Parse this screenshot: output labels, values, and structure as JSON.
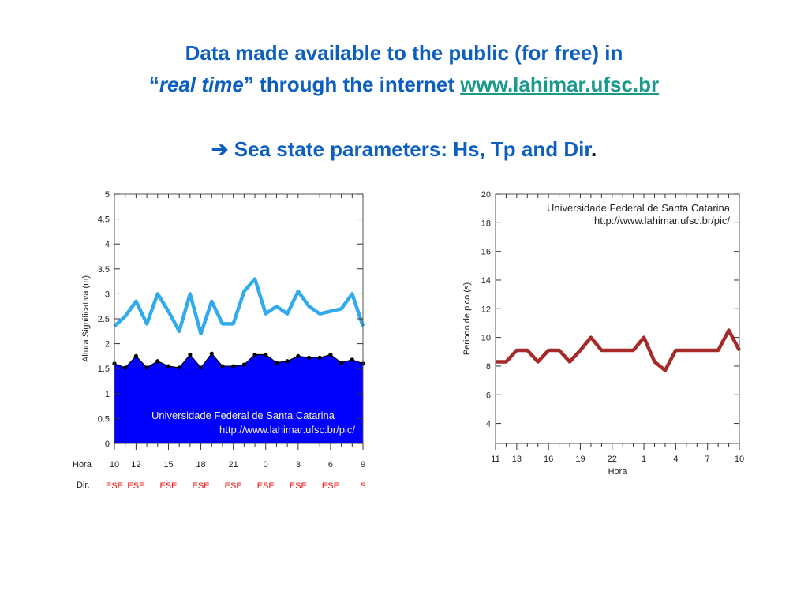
{
  "slide": {
    "title_line1": "Data made available to the public (for free) in",
    "quote_open": "“",
    "title_italic": "real time",
    "title_line2_rest": "” through the internet ",
    "link": "www.lahimar.ufsc.br",
    "subtitle": "➔ Sea state parameters: Hs, Tp and Dir",
    "subtitle_end": "."
  },
  "chart_data": [
    {
      "type": "line",
      "y_label": "Altura Significativa (m)",
      "x_label": "Hora",
      "dir_label": "Dir.",
      "annotation_line1": "Universidade Federal de Santa Catarina",
      "annotation_line2": "http://www.lahimar.ufsc.br/pic/",
      "annotation_color": "#f0f0c8",
      "categories": [
        "10",
        null,
        "12",
        null,
        null,
        "15",
        null,
        null,
        "18",
        null,
        null,
        "21",
        null,
        null,
        "0",
        null,
        null,
        "3",
        null,
        null,
        "6",
        null,
        null,
        "9"
      ],
      "directions": [
        "ESE",
        null,
        "ESE",
        null,
        null,
        "ESE",
        null,
        null,
        "ESE",
        null,
        null,
        "ESE",
        null,
        null,
        "ESE",
        null,
        null,
        "ESE",
        null,
        null,
        "ESE",
        null,
        null,
        "S"
      ],
      "direction_color": "#ee1111",
      "series": [
        {
          "color": "#0000ff",
          "fill": true,
          "marker_color": "#000000",
          "values": [
            1.6,
            1.52,
            1.75,
            1.52,
            1.65,
            1.55,
            1.52,
            1.78,
            1.52,
            1.8,
            1.55,
            1.55,
            1.58,
            1.78,
            1.78,
            1.62,
            1.65,
            1.75,
            1.72,
            1.72,
            1.78,
            1.62,
            1.68,
            1.6
          ]
        },
        {
          "color": "#33aaee",
          "values": [
            2.35,
            2.55,
            2.85,
            2.4,
            3.0,
            2.65,
            2.25,
            3.0,
            2.2,
            2.85,
            2.4,
            2.4,
            3.05,
            3.3,
            2.6,
            2.75,
            2.6,
            3.05,
            2.75,
            2.6,
            2.65,
            2.7,
            3.0,
            2.35
          ]
        }
      ],
      "ylim": [
        0,
        5
      ],
      "yticks": [
        0,
        0.5,
        1,
        1.5,
        2,
        2.5,
        3,
        3.5,
        4,
        4.5,
        5
      ]
    },
    {
      "type": "line",
      "y_label": "Periodo de pico (s)",
      "x_label": "Hora",
      "annotation_line1": "Universidade Federal de Santa Catarina",
      "annotation_line2": "http://www.lahimar.ufsc.br/pic/",
      "annotation_color": "#222222",
      "categories": [
        "11",
        null,
        "13",
        null,
        null,
        "16",
        null,
        null,
        "19",
        null,
        null,
        "22",
        null,
        null,
        "1",
        null,
        null,
        "4",
        null,
        null,
        "7",
        null,
        null,
        "10"
      ],
      "series": [
        {
          "color": "#a52a2a",
          "values": [
            8.3,
            8.3,
            9.1,
            9.1,
            8.3,
            9.1,
            9.1,
            8.3,
            9.1,
            10,
            9.1,
            9.1,
            9.1,
            9.1,
            10,
            8.3,
            7.7,
            9.1,
            9.1,
            9.1,
            9.1,
            9.1,
            10.5,
            9.1
          ]
        }
      ],
      "ylim": [
        2.6,
        20
      ],
      "yticks": [
        4,
        6,
        8,
        10,
        12,
        14,
        16,
        18,
        20
      ]
    }
  ]
}
